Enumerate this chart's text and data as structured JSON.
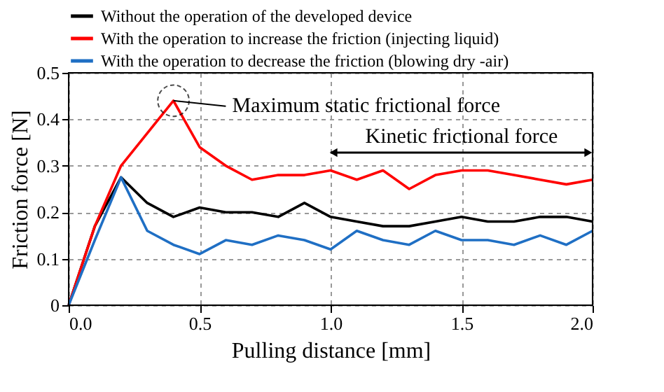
{
  "chart_data": {
    "type": "line",
    "xlabel": "Pulling distance [mm]",
    "ylabel": "Friction force [N]",
    "x": [
      0,
      0.1,
      0.2,
      0.3,
      0.4,
      0.5,
      0.6,
      0.7,
      0.8,
      0.9,
      1.0,
      1.1,
      1.2,
      1.3,
      1.4,
      1.5,
      1.6,
      1.7,
      1.8,
      1.9,
      2.0
    ],
    "series": [
      {
        "name": "Without the operation of the developed device",
        "color": "#000000",
        "values": [
          0,
          0.17,
          0.275,
          0.22,
          0.19,
          0.21,
          0.2,
          0.2,
          0.19,
          0.22,
          0.19,
          0.18,
          0.17,
          0.17,
          0.18,
          0.19,
          0.18,
          0.18,
          0.19,
          0.19,
          0.18
        ]
      },
      {
        "name": "With the operation to increase the friction (injecting liquid)",
        "color": "#ff0000",
        "values": [
          0,
          0.17,
          0.3,
          0.37,
          0.44,
          0.34,
          0.3,
          0.27,
          0.28,
          0.28,
          0.29,
          0.27,
          0.29,
          0.25,
          0.28,
          0.29,
          0.29,
          0.28,
          0.27,
          0.26,
          0.27
        ]
      },
      {
        "name": "With the operation to decrease the friction (blowing dry -air)",
        "color": "#1f6fc4",
        "values": [
          0,
          0.14,
          0.275,
          0.16,
          0.13,
          0.11,
          0.14,
          0.13,
          0.15,
          0.14,
          0.12,
          0.16,
          0.14,
          0.13,
          0.16,
          0.14,
          0.14,
          0.13,
          0.15,
          0.13,
          0.16
        ]
      }
    ],
    "annotations": [
      {
        "text": "Maximum static frictional force",
        "x": 0.4,
        "y": 0.44
      },
      "Kinetic frictional force"
    ],
    "xlim": [
      0,
      2.0
    ],
    "ylim": [
      0,
      0.5
    ],
    "xticks": [
      {
        "value": 0,
        "label": "0.0"
      },
      0.5,
      {
        "value": 1,
        "label": "1.0"
      },
      1.5,
      {
        "value": 2,
        "label": "2.0"
      }
    ],
    "yticks": [
      0,
      0.1,
      0.2,
      0.3,
      0.4,
      0.5
    ],
    "grid": true,
    "legend": "top",
    "marker": "none",
    "line_style": "solid"
  }
}
